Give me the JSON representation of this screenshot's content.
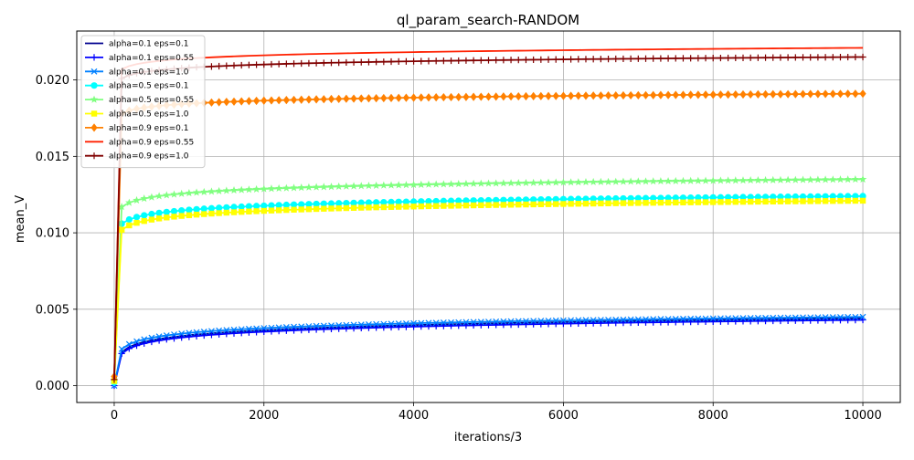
{
  "chart_data": {
    "type": "line",
    "title": "ql_param_search-RANDOM",
    "xlabel": "iterations/3",
    "ylabel": "mean_V",
    "xlim": [
      -500,
      10500
    ],
    "ylim": [
      -0.0011,
      0.0232
    ],
    "xticks": [
      0,
      2000,
      4000,
      6000,
      8000,
      10000
    ],
    "xtick_labels": [
      "0",
      "2000",
      "4000",
      "6000",
      "8000",
      "10000"
    ],
    "yticks": [
      0.0,
      0.005,
      0.01,
      0.015,
      0.02
    ],
    "ytick_labels": [
      "0.000",
      "0.005",
      "0.010",
      "0.015",
      "0.020"
    ],
    "grid": true,
    "legend_position": "top-left",
    "series": [
      {
        "name": "alpha=0.1 eps=0.1",
        "color": "#00008f",
        "marker": "none",
        "start": 0.0,
        "knee": 0.0022,
        "end": 0.0044
      },
      {
        "name": "alpha=0.1 eps=0.55",
        "color": "#0000ff",
        "marker": "plus",
        "start": 0.0,
        "knee": 0.0021,
        "end": 0.0043
      },
      {
        "name": "alpha=0.1 eps=1.0",
        "color": "#0080ff",
        "marker": "x",
        "start": 0.0,
        "knee": 0.0024,
        "end": 0.0045
      },
      {
        "name": "alpha=0.5 eps=0.1",
        "color": "#00ffff",
        "marker": "circle",
        "start": 0.0002,
        "knee": 0.0106,
        "end": 0.0124
      },
      {
        "name": "alpha=0.5 eps=0.55",
        "color": "#80ff80",
        "marker": "star",
        "start": 0.0003,
        "knee": 0.0117,
        "end": 0.0135
      },
      {
        "name": "alpha=0.5 eps=1.0",
        "color": "#ffff00",
        "marker": "square",
        "start": 0.0003,
        "knee": 0.0102,
        "end": 0.0121
      },
      {
        "name": "alpha=0.9 eps=0.1",
        "color": "#ff8000",
        "marker": "diamond",
        "start": 0.0006,
        "knee": 0.0178,
        "end": 0.0191
      },
      {
        "name": "alpha=0.9 eps=0.55",
        "color": "#ff2000",
        "marker": "none",
        "start": 0.0004,
        "knee": 0.0207,
        "end": 0.0221
      },
      {
        "name": "alpha=0.9 eps=1.0",
        "color": "#800000",
        "marker": "plus",
        "start": 0.0004,
        "knee": 0.0201,
        "end": 0.0215
      }
    ]
  }
}
